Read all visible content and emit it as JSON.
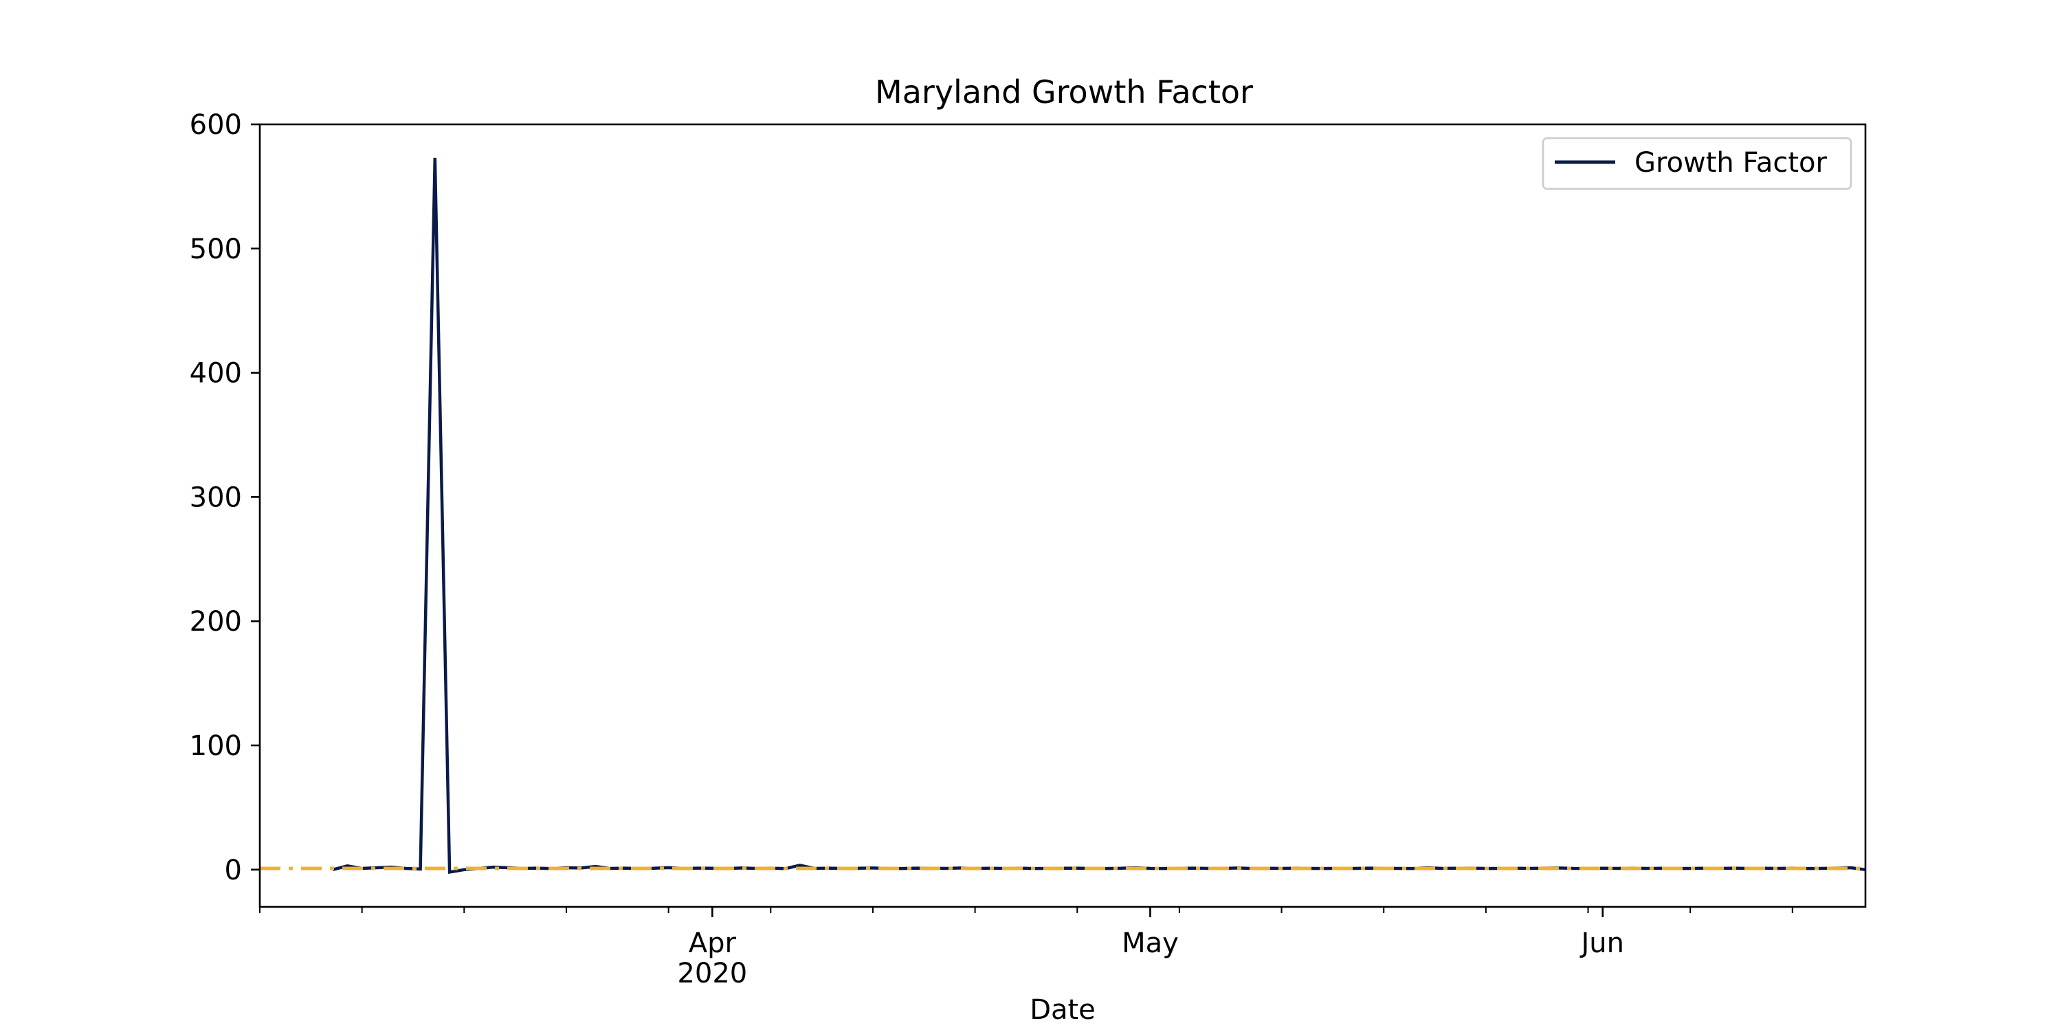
{
  "chart_data": {
    "type": "line",
    "title": "Maryland Growth Factor",
    "xlabel": "Date",
    "ylabel": "",
    "ylim": [
      -30,
      600
    ],
    "xlim": [
      "2020-03-01",
      "2020-06-19"
    ],
    "yticks": [
      0,
      100,
      200,
      300,
      400,
      500,
      600
    ],
    "xticks_major": [
      {
        "date": "2020-04-01",
        "label": "Apr",
        "sublabel": "2020"
      },
      {
        "date": "2020-05-01",
        "label": "May",
        "sublabel": ""
      },
      {
        "date": "2020-06-01",
        "label": "Jun",
        "sublabel": ""
      }
    ],
    "xticks_minor": [
      "2020-03-01",
      "2020-03-08",
      "2020-03-15",
      "2020-03-22",
      "2020-03-29",
      "2020-04-05",
      "2020-04-12",
      "2020-04-19",
      "2020-04-26",
      "2020-05-03",
      "2020-05-10",
      "2020-05-17",
      "2020-05-24",
      "2020-05-31",
      "2020-06-07",
      "2020-06-14"
    ],
    "grid": false,
    "legend": {
      "position": "top-right",
      "entries": [
        "Growth Factor"
      ]
    },
    "series": [
      {
        "name": "Growth Factor",
        "color": "#0b1a4a",
        "style": "solid",
        "x": [
          "2020-03-06",
          "2020-03-07",
          "2020-03-08",
          "2020-03-09",
          "2020-03-10",
          "2020-03-11",
          "2020-03-12",
          "2020-03-13",
          "2020-03-14",
          "2020-03-15",
          "2020-03-16",
          "2020-03-17",
          "2020-03-18",
          "2020-03-19",
          "2020-03-20",
          "2020-03-21",
          "2020-03-22",
          "2020-03-23",
          "2020-03-24",
          "2020-03-25",
          "2020-03-26",
          "2020-03-27",
          "2020-03-28",
          "2020-03-29",
          "2020-03-30",
          "2020-03-31",
          "2020-04-01",
          "2020-04-02",
          "2020-04-03",
          "2020-04-04",
          "2020-04-05",
          "2020-04-06",
          "2020-04-07",
          "2020-04-08",
          "2020-04-09",
          "2020-04-10",
          "2020-04-11",
          "2020-04-12",
          "2020-04-13",
          "2020-04-14",
          "2020-04-15",
          "2020-04-16",
          "2020-04-17",
          "2020-04-18",
          "2020-04-19",
          "2020-04-20",
          "2020-04-21",
          "2020-04-22",
          "2020-04-23",
          "2020-04-24",
          "2020-04-25",
          "2020-04-26",
          "2020-04-27",
          "2020-04-28",
          "2020-04-29",
          "2020-04-30",
          "2020-05-01",
          "2020-05-02",
          "2020-05-03",
          "2020-05-04",
          "2020-05-05",
          "2020-05-06",
          "2020-05-07",
          "2020-05-08",
          "2020-05-09",
          "2020-05-10",
          "2020-05-11",
          "2020-05-12",
          "2020-05-13",
          "2020-05-14",
          "2020-05-15",
          "2020-05-16",
          "2020-05-17",
          "2020-05-18",
          "2020-05-19",
          "2020-05-20",
          "2020-05-21",
          "2020-05-22",
          "2020-05-23",
          "2020-05-24",
          "2020-05-25",
          "2020-05-26",
          "2020-05-27",
          "2020-05-28",
          "2020-05-29",
          "2020-05-30",
          "2020-05-31",
          "2020-06-01",
          "2020-06-02",
          "2020-06-03",
          "2020-06-04",
          "2020-06-05",
          "2020-06-06",
          "2020-06-07",
          "2020-06-08",
          "2020-06-09",
          "2020-06-10",
          "2020-06-11",
          "2020-06-12",
          "2020-06-13",
          "2020-06-14",
          "2020-06-15",
          "2020-06-16",
          "2020-06-17",
          "2020-06-18",
          "2020-06-19"
        ],
        "y": [
          0.0,
          3.0,
          1.0,
          1.5,
          2.0,
          1.0,
          0.5,
          573.0,
          -2.0,
          0.0,
          1.0,
          2.0,
          1.5,
          1.0,
          1.2,
          0.8,
          1.5,
          1.3,
          2.5,
          1.0,
          1.2,
          0.9,
          1.1,
          1.6,
          1.0,
          1.2,
          1.1,
          0.9,
          1.3,
          1.0,
          1.2,
          0.8,
          3.5,
          1.0,
          1.2,
          0.9,
          1.1,
          1.3,
          1.0,
          0.9,
          1.2,
          1.1,
          1.0,
          1.3,
          0.9,
          1.1,
          1.0,
          1.2,
          0.9,
          1.0,
          1.1,
          1.2,
          1.0,
          0.9,
          1.1,
          1.5,
          1.0,
          0.9,
          1.1,
          1.2,
          1.0,
          1.0,
          1.3,
          0.9,
          1.1,
          1.0,
          1.2,
          1.0,
          0.9,
          1.1,
          1.0,
          1.2,
          1.1,
          1.0,
          0.9,
          1.5,
          1.0,
          1.1,
          1.2,
          0.9,
          1.0,
          1.1,
          1.0,
          1.2,
          1.3,
          1.0,
          0.9,
          1.1,
          1.0,
          1.2,
          1.0,
          1.1,
          0.9,
          1.0,
          1.1,
          1.0,
          1.2,
          1.0,
          1.1,
          1.0,
          1.2,
          0.9,
          1.0,
          1.2,
          1.5,
          0.0
        ]
      },
      {
        "color": "#f0b030",
        "style": "dashdot",
        "x": [
          "2020-03-01",
          "2020-06-19"
        ],
        "y": [
          1,
          1
        ]
      }
    ]
  }
}
